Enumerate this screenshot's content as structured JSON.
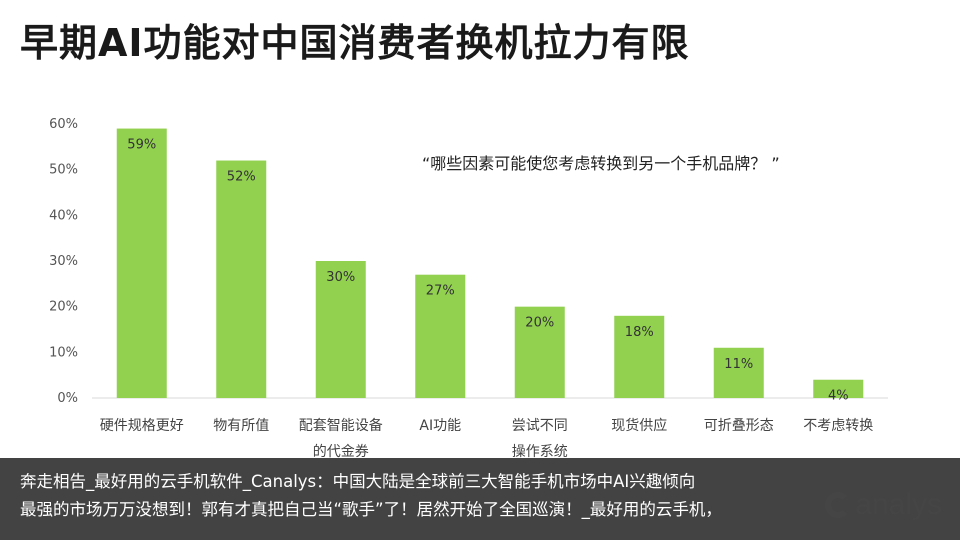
{
  "page": {
    "title": "早期AI功能对中国消费者换机拉力有限"
  },
  "annotation": "“哪些因素可能使您考虑转换到另一个手机品牌？ ”",
  "caption": {
    "line1": "奔走相告_最好用的云手机软件_Canalys：中国大陆是全球前三大智能手机市场中AI兴趣倾向",
    "line2": "最强的市场万万没想到！郭有才真把自己当“歌手”了！居然开始了全国巡演！_最好用的云手机，"
  },
  "logo": {
    "text": "analys"
  },
  "chart_data": {
    "type": "bar",
    "categories": [
      "硬件规格更好",
      "物有所值",
      "配套智能设备的代金券",
      "AI功能",
      "尝试不同操作系统",
      "现货供应",
      "可折叠形态",
      "不考虑转换"
    ],
    "category_lines": [
      [
        "硬件规格更好"
      ],
      [
        "物有所值"
      ],
      [
        "配套智能设备",
        "的代金券"
      ],
      [
        "AI功能"
      ],
      [
        "尝试不同",
        "操作系统"
      ],
      [
        "现货供应"
      ],
      [
        "可折叠形态"
      ],
      [
        "不考虑转换"
      ]
    ],
    "values": [
      59,
      52,
      30,
      27,
      20,
      18,
      11,
      4
    ],
    "value_labels": [
      "59%",
      "52%",
      "30%",
      "27%",
      "20%",
      "18%",
      "11%",
      "4%"
    ],
    "yticks": [
      0,
      10,
      20,
      30,
      40,
      50,
      60
    ],
    "ytick_labels": [
      "0%",
      "10%",
      "20%",
      "30%",
      "40%",
      "50%",
      "60%"
    ],
    "ylim": [
      0,
      60
    ],
    "title": "早期AI功能对中国消费者换机拉力有限",
    "xlabel": "",
    "ylabel": "",
    "grid": false,
    "bar_color": "#92D050"
  }
}
